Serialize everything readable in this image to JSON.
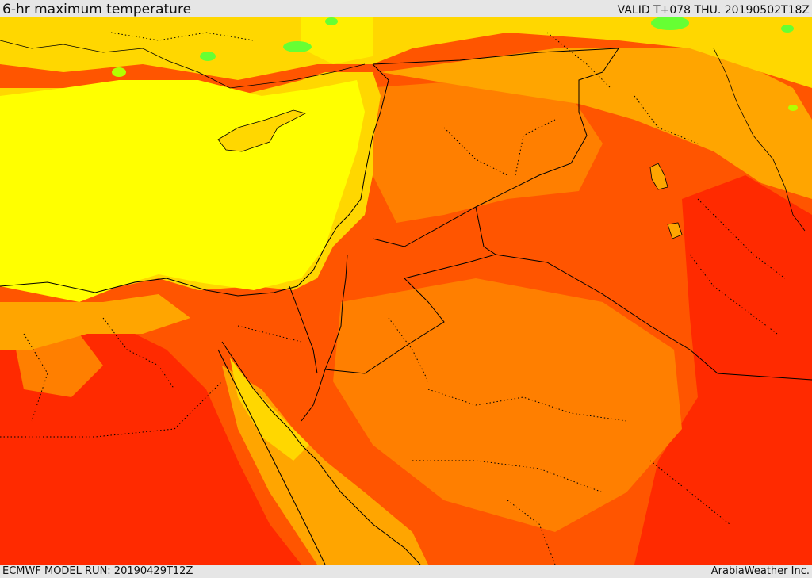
{
  "header": {
    "title": "6-hr maximum temperature",
    "valid": "VALID T+078 THU. 20190502T18Z"
  },
  "footer": {
    "model_run": "ECMWF MODEL RUN: 20190429T12Z",
    "credit": "ArabiaWeather Inc."
  },
  "palette": {
    "yellow": "#ffff00",
    "gold": "#ffd700",
    "amber": "#ffa500",
    "orange": "#ff7f00",
    "orange_red": "#ff5500",
    "red": "#ff2a00",
    "green": "#66ff33",
    "light_green": "#b3ff00",
    "border": "#000000"
  }
}
